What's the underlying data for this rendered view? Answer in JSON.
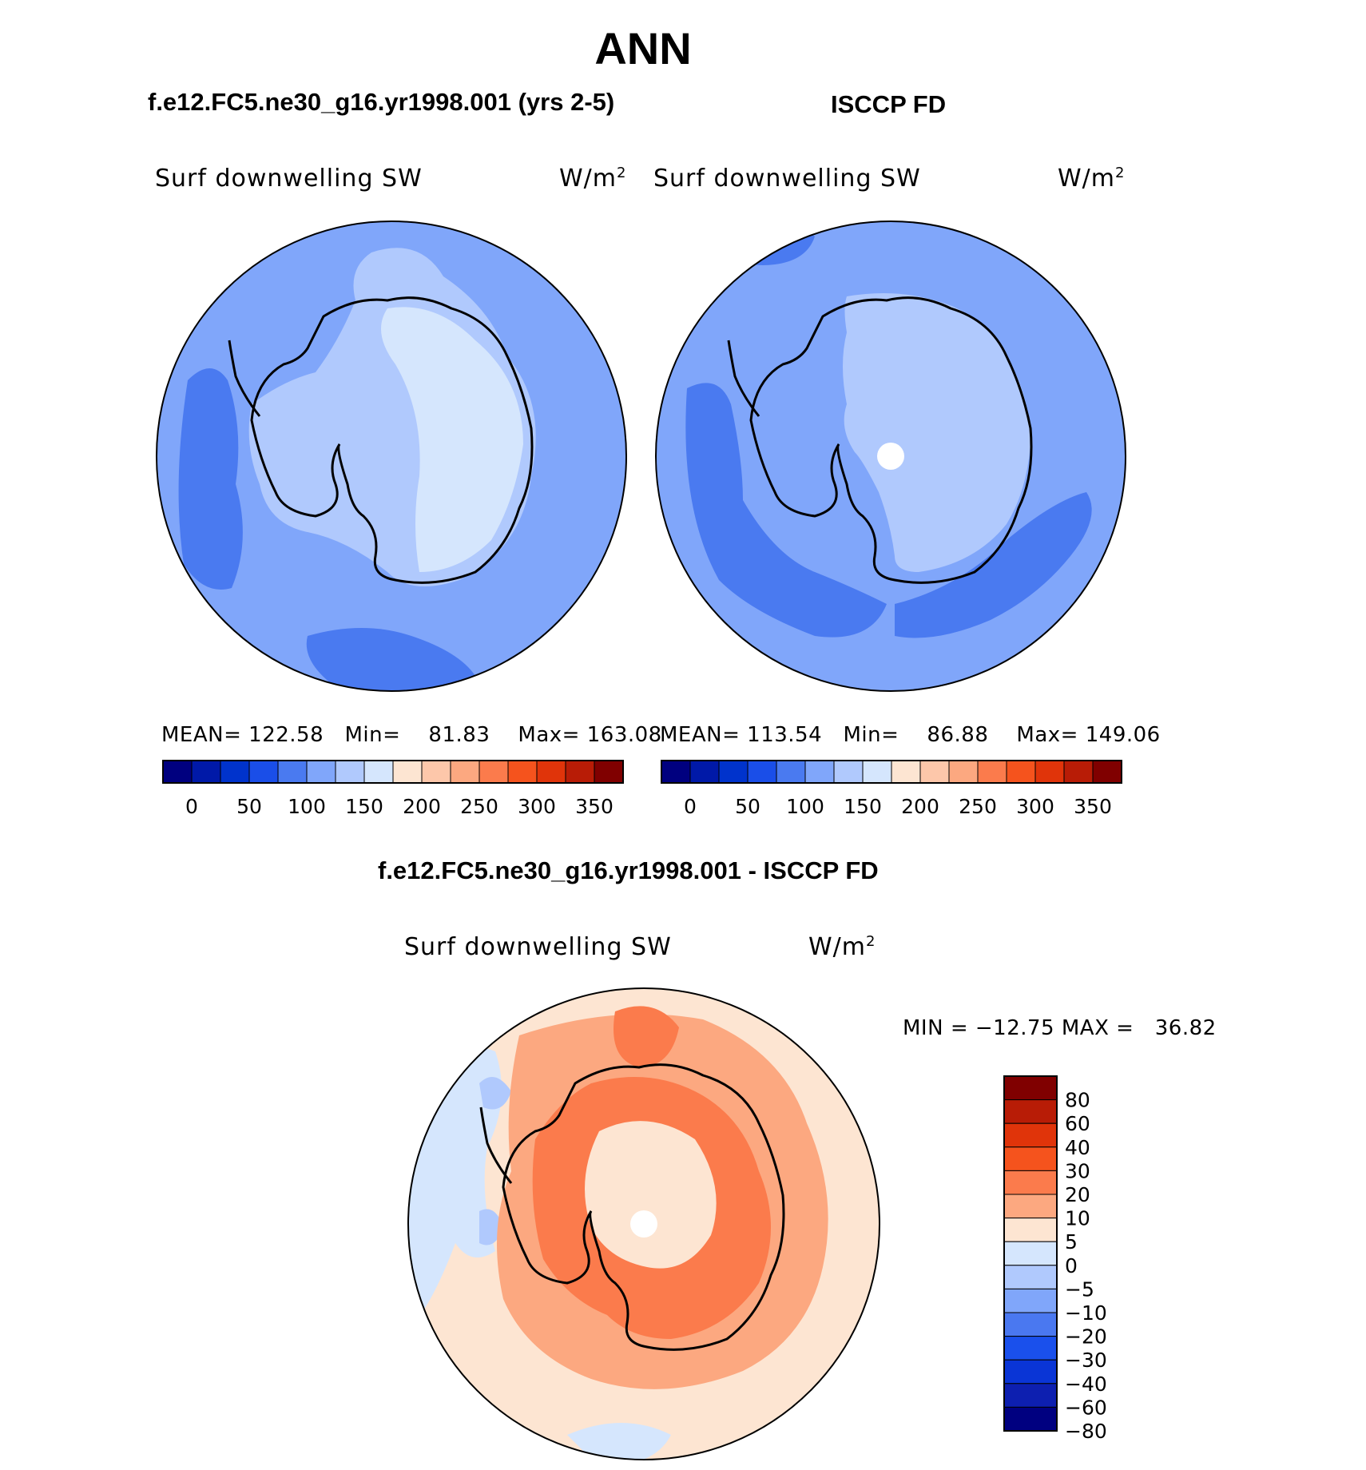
{
  "page_title": "ANN",
  "left_panel": {
    "header": "f.e12.FC5.ne30_g16.yr1998.001 (yrs 2-5)",
    "variable": "Surf downwelling SW",
    "units": "W/m",
    "units_sup": "2",
    "stats": {
      "mean_label": "MEAN=",
      "mean": "122.58",
      "min_label": "Min=",
      "min": "81.83",
      "max_label": "Max=",
      "max": "163.08"
    }
  },
  "right_panel": {
    "header": "ISCCP FD",
    "variable": "Surf downwelling SW",
    "units": "W/m",
    "units_sup": "2",
    "stats": {
      "mean_label": "MEAN=",
      "mean": "113.54",
      "min_label": "Min=",
      "min": "86.88",
      "max_label": "Max=",
      "max": "149.06"
    }
  },
  "diff_panel": {
    "header": "f.e12.FC5.ne30_g16.yr1998.001 - ISCCP FD",
    "variable": "Surf downwelling SW",
    "units": "W/m",
    "units_sup": "2",
    "minmax": {
      "min_label": "MIN =",
      "min": "−12.75",
      "max_label": "MAX =",
      "max": "36.82"
    }
  },
  "abs_colorbar": {
    "colors": [
      "#00007f",
      "#0019a8",
      "#0033cc",
      "#1a4ee8",
      "#4a7af0",
      "#80a6fa",
      "#b0c9fd",
      "#d5e6fd",
      "#fde5d2",
      "#fdc7aa",
      "#fca880",
      "#fb7b4c",
      "#f5531d",
      "#e0340a",
      "#b81c06",
      "#800000"
    ],
    "tick_labels": [
      "0",
      "50",
      "100",
      "150",
      "200",
      "250",
      "300",
      "350"
    ]
  },
  "diff_colorbar": {
    "colors": [
      "#000080",
      "#0d1fb0",
      "#0a35d6",
      "#1a50ec",
      "#4a78f0",
      "#80a6fa",
      "#b0c9fd",
      "#d5e6fd",
      "#fde5d2",
      "#fca880",
      "#fb7b4c",
      "#f5531d",
      "#e0340a",
      "#b81c06",
      "#800000"
    ],
    "tick_labels": [
      "80",
      "60",
      "40",
      "30",
      "20",
      "10",
      "5",
      "0",
      "−5",
      "−10",
      "−20",
      "−30",
      "−40",
      "−60",
      "−80"
    ]
  },
  "map_colors": {
    "ocean_model": "#80a6fa",
    "band_model": "#4a7af0",
    "ice_mid_model": "#b0c9fd",
    "ice_core_model": "#d5e6fd",
    "ocean_obs": "#80a6fa",
    "band_obs": "#4a7af0",
    "ice_obs": "#b0c9fd",
    "diff_base": "#fde5d2",
    "diff_mid": "#fca880",
    "diff_high": "#fb7b4c",
    "diff_neg": "#d5e6fd",
    "diff_neg2": "#b0c9fd",
    "coast": "#000000"
  }
}
